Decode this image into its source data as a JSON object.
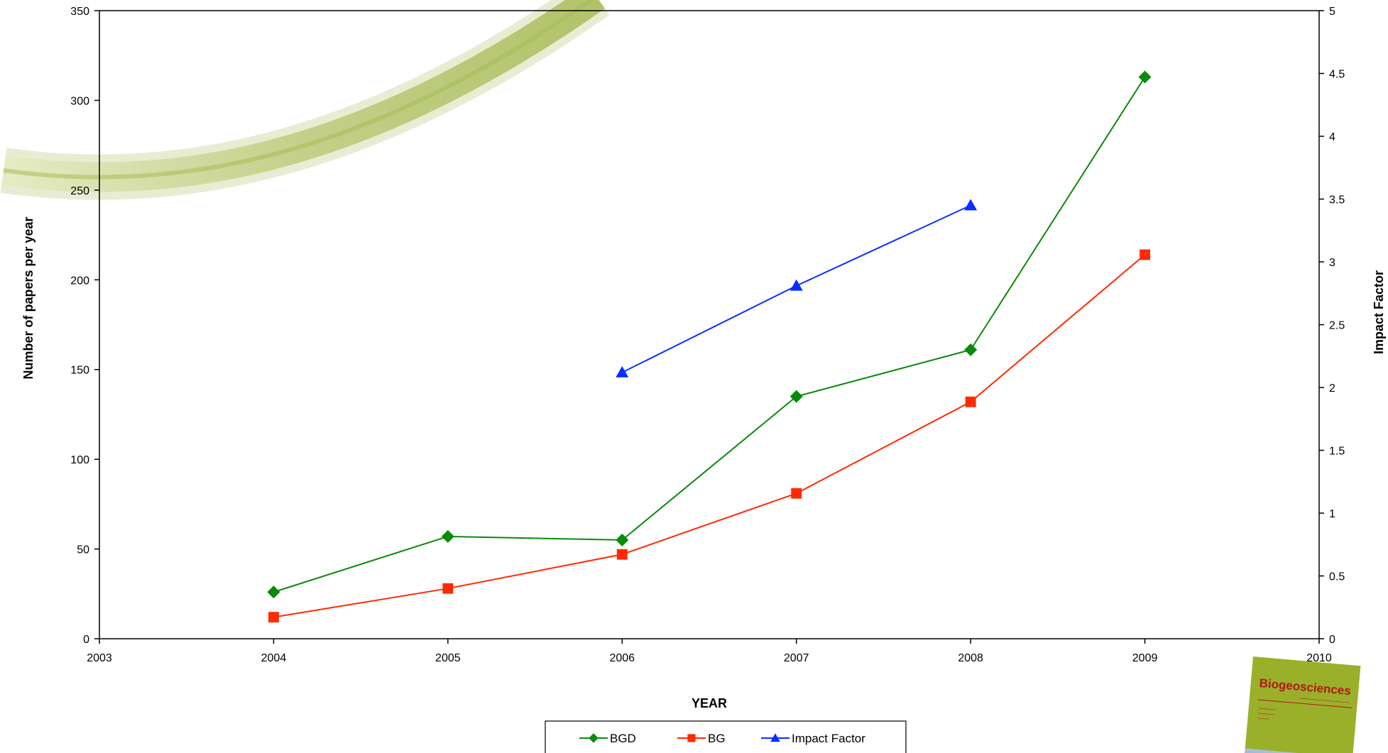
{
  "chart_data": {
    "type": "line",
    "xlabel": "YEAR",
    "ylabel": "Number of papers per year",
    "y2label": "Impact Factor",
    "xlim": [
      2003,
      2010
    ],
    "x_ticks": [
      2003,
      2004,
      2005,
      2006,
      2007,
      2008,
      2009,
      2010
    ],
    "ylim": [
      0,
      350
    ],
    "y_ticks": [
      0,
      50,
      100,
      150,
      200,
      250,
      300,
      350
    ],
    "y2lim": [
      0,
      5
    ],
    "y2_ticks": [
      "0",
      "0.5",
      "1",
      "1.5",
      "2",
      "2.5",
      "3",
      "3.5",
      "4",
      "4.5",
      "5"
    ],
    "grid": false,
    "legend_position": "bottom",
    "series": [
      {
        "name": "BGD",
        "axis": "left",
        "color": "#0a8a0a",
        "marker": "diamond",
        "x": [
          2004,
          2005,
          2006,
          2007,
          2008,
          2009
        ],
        "values": [
          26,
          57,
          55,
          135,
          161,
          313
        ]
      },
      {
        "name": "BG",
        "axis": "left",
        "color": "#ff2a00",
        "marker": "square",
        "x": [
          2004,
          2005,
          2006,
          2007,
          2008,
          2009
        ],
        "values": [
          12,
          28,
          47,
          81,
          132,
          214
        ]
      },
      {
        "name": "Impact Factor",
        "axis": "right",
        "color": "#0a2eff",
        "marker": "triangle",
        "x": [
          2006,
          2007,
          2008
        ],
        "values": [
          2.12,
          2.81,
          3.45
        ]
      }
    ]
  },
  "decor": {
    "cover_title": "Biogeosciences",
    "cover_color": "#9bb02a"
  }
}
